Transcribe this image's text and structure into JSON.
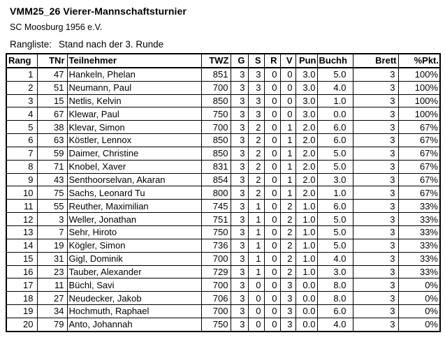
{
  "document": {
    "title": "VMM25_26 Vierer-Mannschaftsturnier",
    "club": "SC Moosburg 1956 e.V.",
    "list_label": "Rangliste:",
    "list_status": "Stand nach der 3. Runde"
  },
  "table": {
    "headers": [
      "Rang",
      "TNr",
      "Teilnehmer",
      "TWZ",
      "G",
      "S",
      "R",
      "V",
      "Pun",
      "Buchh",
      "Brett",
      "%Pkt."
    ],
    "rows": [
      [
        "1",
        "47",
        "Hankeln, Phelan",
        "851",
        "3",
        "3",
        "0",
        "0",
        "3.0",
        "5.0",
        "3",
        "100%"
      ],
      [
        "2",
        "51",
        "Neumann, Paul",
        "700",
        "3",
        "3",
        "0",
        "0",
        "3.0",
        "4.0",
        "3",
        "100%"
      ],
      [
        "3",
        "15",
        "Netlis, Kelvin",
        "850",
        "3",
        "3",
        "0",
        "0",
        "3.0",
        "1.0",
        "3",
        "100%"
      ],
      [
        "4",
        "67",
        "Klewar, Paul",
        "750",
        "3",
        "3",
        "0",
        "0",
        "3.0",
        "0.0",
        "3",
        "100%"
      ],
      [
        "5",
        "38",
        "Klevar, Simon",
        "700",
        "3",
        "2",
        "0",
        "1",
        "2.0",
        "6.0",
        "3",
        "67%"
      ],
      [
        "6",
        "63",
        "Köstler, Lennox",
        "850",
        "3",
        "2",
        "0",
        "1",
        "2.0",
        "6.0",
        "3",
        "67%"
      ],
      [
        "7",
        "59",
        "Daimer, Christine",
        "850",
        "3",
        "2",
        "0",
        "1",
        "2.0",
        "5.0",
        "3",
        "67%"
      ],
      [
        "8",
        "71",
        "Knobel, Xaver",
        "831",
        "3",
        "2",
        "0",
        "1",
        "2.0",
        "5.0",
        "3",
        "67%"
      ],
      [
        "9",
        "43",
        "Senthoorselvan, Akaran",
        "854",
        "3",
        "2",
        "0",
        "1",
        "2.0",
        "3.0",
        "3",
        "67%"
      ],
      [
        "10",
        "75",
        "Sachs, Leonard Tu",
        "800",
        "3",
        "2",
        "0",
        "1",
        "2.0",
        "1.0",
        "3",
        "67%"
      ],
      [
        "11",
        "55",
        "Reuther, Maximilian",
        "745",
        "3",
        "1",
        "0",
        "2",
        "1.0",
        "6.0",
        "3",
        "33%"
      ],
      [
        "12",
        "3",
        "Weller, Jonathan",
        "751",
        "3",
        "1",
        "0",
        "2",
        "1.0",
        "5.0",
        "3",
        "33%"
      ],
      [
        "13",
        "7",
        "Sehr, Hiroto",
        "750",
        "3",
        "1",
        "0",
        "2",
        "1.0",
        "5.0",
        "3",
        "33%"
      ],
      [
        "14",
        "19",
        "Kögler, Simon",
        "736",
        "3",
        "1",
        "0",
        "2",
        "1.0",
        "5.0",
        "3",
        "33%"
      ],
      [
        "15",
        "31",
        "Gigl, Dominik",
        "700",
        "3",
        "1",
        "0",
        "2",
        "1.0",
        "4.0",
        "3",
        "33%"
      ],
      [
        "16",
        "23",
        "Tauber, Alexander",
        "729",
        "3",
        "1",
        "0",
        "2",
        "1.0",
        "3.0",
        "3",
        "33%"
      ],
      [
        "17",
        "11",
        "Büchl, Savi",
        "700",
        "3",
        "0",
        "0",
        "3",
        "0.0",
        "8.0",
        "3",
        "0%"
      ],
      [
        "18",
        "27",
        "Neudecker, Jakob",
        "706",
        "3",
        "0",
        "0",
        "3",
        "0.0",
        "8.0",
        "3",
        "0%"
      ],
      [
        "19",
        "34",
        "Hochmuth, Raphael",
        "700",
        "3",
        "0",
        "0",
        "3",
        "0.0",
        "6.0",
        "3",
        "0%"
      ],
      [
        "20",
        "79",
        "Anto, Johannah",
        "750",
        "3",
        "0",
        "0",
        "3",
        "0.0",
        "4.0",
        "3",
        "0%"
      ]
    ]
  },
  "colors": {
    "text": "#000000",
    "background": "#ffffff",
    "border": "#000000"
  }
}
